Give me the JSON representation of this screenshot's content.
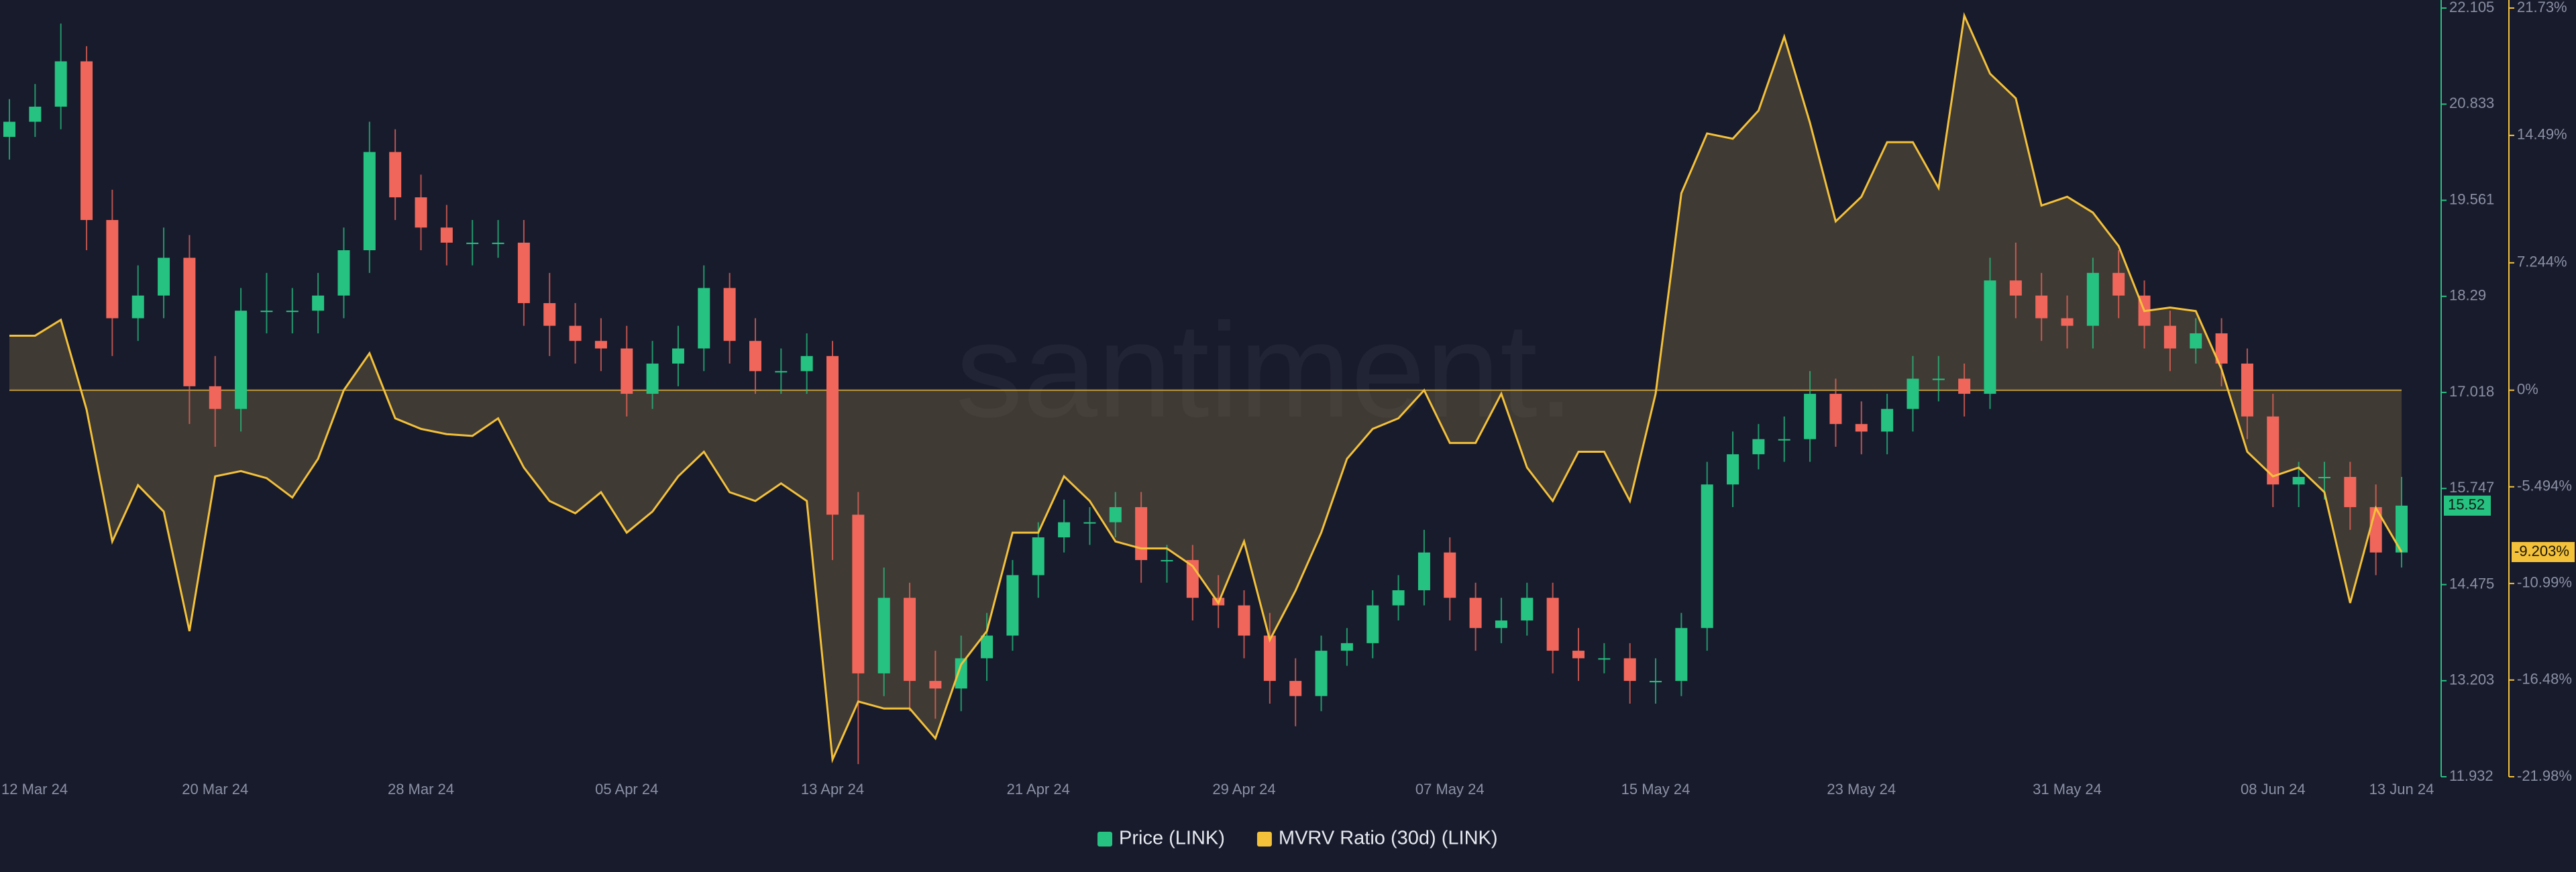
{
  "chart_data": {
    "type": "candlestick",
    "watermark": "santiment.",
    "categories": [
      "12 Mar 24",
      null,
      null,
      null,
      null,
      null,
      null,
      null,
      "20 Mar 24",
      null,
      null,
      null,
      null,
      null,
      null,
      null,
      "28 Mar 24",
      null,
      null,
      null,
      null,
      null,
      null,
      null,
      "05 Apr 24",
      null,
      null,
      null,
      null,
      null,
      null,
      null,
      "13 Apr 24",
      null,
      null,
      null,
      null,
      null,
      null,
      null,
      "21 Apr 24",
      null,
      null,
      null,
      null,
      null,
      null,
      null,
      "29 Apr 24",
      null,
      null,
      null,
      null,
      null,
      null,
      null,
      "07 May 24",
      null,
      null,
      null,
      null,
      null,
      null,
      null,
      "15 May 24",
      null,
      null,
      null,
      null,
      null,
      null,
      null,
      "23 May 24",
      null,
      null,
      null,
      null,
      null,
      null,
      null,
      "31 May 24",
      null,
      null,
      null,
      null,
      null,
      null,
      null,
      "08 Jun 24",
      null,
      null,
      null,
      null,
      "13 Jun 24"
    ],
    "series": [
      {
        "name": "Price (LINK)",
        "type": "candlestick",
        "color": "#26c281",
        "down_color": "#f0665a",
        "last_label": "15.52",
        "open": [
          20.4,
          20.6,
          20.8,
          21.4,
          19.3,
          18.0,
          18.3,
          18.8,
          17.1,
          16.8,
          18.1,
          18.1,
          18.1,
          18.3,
          18.9,
          20.2,
          19.6,
          19.2,
          19.0,
          19.0,
          19.0,
          18.2,
          17.9,
          17.7,
          17.6,
          17.0,
          17.4,
          17.6,
          18.4,
          17.7,
          17.3,
          17.3,
          17.5,
          15.4,
          13.3,
          14.3,
          13.2,
          13.1,
          13.5,
          13.8,
          14.6,
          15.1,
          15.3,
          15.3,
          15.5,
          14.8,
          14.8,
          14.3,
          14.2,
          13.8,
          13.2,
          13.0,
          13.6,
          13.7,
          14.2,
          14.4,
          14.9,
          14.3,
          13.9,
          14.0,
          14.3,
          13.6,
          13.5,
          13.5,
          13.2,
          13.2,
          13.9,
          15.8,
          16.2,
          16.4,
          16.4,
          17.0,
          16.6,
          16.5,
          16.8,
          17.2,
          17.2,
          17.0,
          18.5,
          18.3,
          18.0,
          17.9,
          18.6,
          18.3,
          17.9,
          17.6,
          17.8,
          17.4,
          16.7,
          15.8,
          15.9,
          15.9,
          15.5,
          14.9
        ],
        "high": [
          20.9,
          21.1,
          21.9,
          21.6,
          19.7,
          18.7,
          19.2,
          19.1,
          17.5,
          18.4,
          18.6,
          18.4,
          18.6,
          19.2,
          20.6,
          20.5,
          19.9,
          19.5,
          19.3,
          19.3,
          19.3,
          18.6,
          18.2,
          18.0,
          17.9,
          17.7,
          17.9,
          18.7,
          18.6,
          18.0,
          17.6,
          17.8,
          17.7,
          15.7,
          14.7,
          14.5,
          13.6,
          13.8,
          14.1,
          14.8,
          15.3,
          15.6,
          15.5,
          15.7,
          15.7,
          15.0,
          15.0,
          14.6,
          14.4,
          14.1,
          13.5,
          13.8,
          13.9,
          14.4,
          14.6,
          15.2,
          15.1,
          14.5,
          14.3,
          14.5,
          14.5,
          13.9,
          13.7,
          13.7,
          13.5,
          14.1,
          16.1,
          16.5,
          16.6,
          16.7,
          17.3,
          17.2,
          16.9,
          17.0,
          17.5,
          17.5,
          17.4,
          18.8,
          19.0,
          18.6,
          18.3,
          18.8,
          18.9,
          18.5,
          18.1,
          18.0,
          18.0,
          17.6,
          17.0,
          16.1,
          16.1,
          16.1,
          15.8,
          15.9
        ],
        "low": [
          20.1,
          20.4,
          20.5,
          18.9,
          17.5,
          17.7,
          18.0,
          16.6,
          16.3,
          16.5,
          17.8,
          17.8,
          17.8,
          18.0,
          18.6,
          19.3,
          18.9,
          18.7,
          18.7,
          18.8,
          17.9,
          17.5,
          17.4,
          17.3,
          16.7,
          16.8,
          17.1,
          17.3,
          17.4,
          17.0,
          17.0,
          17.0,
          14.8,
          12.1,
          13.0,
          12.8,
          12.7,
          12.8,
          13.2,
          13.6,
          14.3,
          14.9,
          15.0,
          15.1,
          14.5,
          14.5,
          14.0,
          13.9,
          13.5,
          12.9,
          12.6,
          12.8,
          13.4,
          13.5,
          14.0,
          14.2,
          14.0,
          13.6,
          13.7,
          13.8,
          13.3,
          13.2,
          13.3,
          12.9,
          12.9,
          13.0,
          13.6,
          15.5,
          16.0,
          16.1,
          16.1,
          16.3,
          16.2,
          16.2,
          16.5,
          16.9,
          16.7,
          16.8,
          18.0,
          17.7,
          17.6,
          17.6,
          18.0,
          17.6,
          17.3,
          17.4,
          17.1,
          16.4,
          15.5,
          15.5,
          15.6,
          15.2,
          14.6,
          14.7
        ],
        "close": [
          20.6,
          20.8,
          21.4,
          19.3,
          18.0,
          18.3,
          18.8,
          17.1,
          16.8,
          18.1,
          18.1,
          18.1,
          18.3,
          18.9,
          20.2,
          19.6,
          19.2,
          19.0,
          19.0,
          19.0,
          18.2,
          17.9,
          17.7,
          17.6,
          17.0,
          17.4,
          17.6,
          18.4,
          17.7,
          17.3,
          17.3,
          17.5,
          15.4,
          13.3,
          14.3,
          13.2,
          13.1,
          13.5,
          13.8,
          14.6,
          15.1,
          15.3,
          15.3,
          15.5,
          14.8,
          14.8,
          14.3,
          14.2,
          13.8,
          13.2,
          13.0,
          13.6,
          13.7,
          14.2,
          14.4,
          14.9,
          14.3,
          13.9,
          14.0,
          14.3,
          13.6,
          13.5,
          13.5,
          13.2,
          13.2,
          13.9,
          15.8,
          16.2,
          16.4,
          16.4,
          17.0,
          16.6,
          16.5,
          16.8,
          17.2,
          17.2,
          17.0,
          18.5,
          18.3,
          18.0,
          17.9,
          18.6,
          18.3,
          17.9,
          17.6,
          17.8,
          17.4,
          16.7,
          15.8,
          15.9,
          15.9,
          15.5,
          14.9,
          15.52
        ]
      },
      {
        "name": "MVRV Ratio (30d) (LINK)",
        "type": "area",
        "axis": "y2",
        "color": "#f3c13a",
        "last_label": "-9.203%",
        "values": [
          3.1,
          3.1,
          4.0,
          -1.1,
          -8.6,
          -5.4,
          -6.9,
          -13.7,
          -4.9,
          -4.6,
          -5.0,
          -6.1,
          -3.9,
          0.0,
          2.1,
          -1.6,
          -2.2,
          -2.5,
          -2.6,
          -1.6,
          -4.4,
          -6.3,
          -7.0,
          -5.8,
          -8.1,
          -6.9,
          -4.9,
          -3.5,
          -5.8,
          -6.3,
          -5.3,
          -6.3,
          -21.0,
          -17.7,
          -18.1,
          -18.1,
          -19.8,
          -15.6,
          -13.7,
          -8.1,
          -8.1,
          -4.9,
          -6.3,
          -8.6,
          -9.0,
          -9.0,
          -10.0,
          -12.1,
          -8.6,
          -14.2,
          -11.4,
          -8.1,
          -3.9,
          -2.2,
          -1.6,
          0.0,
          -3.0,
          -3.0,
          -0.2,
          -4.4,
          -6.3,
          -3.5,
          -3.5,
          -6.3,
          -0.2,
          11.2,
          14.6,
          14.3,
          15.9,
          20.1,
          15.2,
          9.6,
          11.0,
          14.1,
          14.1,
          11.5,
          21.3,
          18.0,
          16.6,
          10.5,
          11.0,
          10.1,
          8.2,
          4.5,
          4.7,
          4.5,
          1.2,
          -3.5,
          -4.9,
          -4.4,
          -5.8,
          -12.1,
          -6.7,
          -9.203
        ]
      }
    ],
    "ylim": [
      11.932,
      22.105
    ],
    "yticks": [
      11.932,
      13.203,
      14.475,
      15.747,
      17.018,
      18.29,
      19.561,
      20.833,
      22.105
    ],
    "y2lim": [
      -21.98,
      21.73
    ],
    "y2ticks": [
      {
        "value": -21.98,
        "label": "-21.98%"
      },
      {
        "value": -16.48,
        "label": "-16.48%"
      },
      {
        "value": -10.99,
        "label": "-10.99%"
      },
      {
        "value": -5.494,
        "label": "-5.494%"
      },
      {
        "value": 0,
        "label": "0%"
      },
      {
        "value": 7.244,
        "label": "7.244%"
      },
      {
        "value": 14.49,
        "label": "14.49%"
      },
      {
        "value": 21.73,
        "label": "21.73%"
      }
    ],
    "legend": "bottom"
  }
}
